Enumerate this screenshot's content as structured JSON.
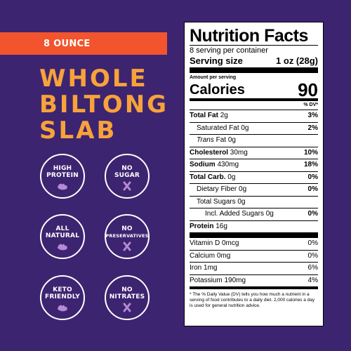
{
  "banner": "8 OUNCE",
  "title": [
    "WHOLE",
    "BILTONG",
    "SLAB"
  ],
  "badges": [
    {
      "line1": "HIGH",
      "line2": "PROTEIN",
      "icon": "muscle-icon"
    },
    {
      "line1": "NO",
      "line2": "SUGAR",
      "icon": "x-icon"
    },
    {
      "line1": "ALL",
      "line2": "NATURAL",
      "icon": "muscle-icon"
    },
    {
      "line1": "NO",
      "line2": "PRESERVATIVES",
      "icon": "x-icon"
    },
    {
      "line1": "KETO",
      "line2": "FRIENDLY",
      "icon": "muscle-icon"
    },
    {
      "line1": "NO",
      "line2": "NITRATES",
      "icon": "x-icon"
    }
  ],
  "colors": {
    "background": "#3d2470",
    "banner": "#f2542d",
    "title": "#f7a23a",
    "icon": "#b58ad6"
  },
  "nutrition": {
    "title": "Nutrition Facts",
    "servings": "8 serving per container",
    "serving_size_label": "Serving size",
    "serving_size_value": "1 oz (28g)",
    "amount_per_serving": "Amount per serving",
    "calories_label": "Calories",
    "calories_value": "90",
    "dv_header": "% DV*",
    "rows": {
      "total_fat": {
        "label": "Total Fat",
        "amount": "2g",
        "dv": "3%"
      },
      "sat_fat": {
        "label": "Saturated Fat",
        "amount": "0g",
        "dv": "2%"
      },
      "trans_fat": {
        "label_italic": "Trans",
        "label": "Fat",
        "amount": "0g"
      },
      "cholesterol": {
        "label": "Cholesterol",
        "amount": "30mg",
        "dv": "10%"
      },
      "sodium": {
        "label": "Sodium",
        "amount": "430mg",
        "dv": "18%"
      },
      "total_carb": {
        "label": "Total Carb.",
        "amount": "0g",
        "dv": "0%"
      },
      "fiber": {
        "label": "Dietary Fiber",
        "amount": "0g",
        "dv": "0%"
      },
      "sugars": {
        "label": "Total Sugars",
        "amount": "0g"
      },
      "added_sugars": {
        "label": "Incl. Added Sugars",
        "amount": "0g",
        "dv": "0%"
      },
      "protein": {
        "label": "Protein",
        "amount": "16g"
      },
      "vitd": {
        "label": "Vitamin D",
        "amount": "0mcg",
        "dv": "0%"
      },
      "calcium": {
        "label": "Calcium",
        "amount": "0mg",
        "dv": "0%"
      },
      "iron": {
        "label": "Iron",
        "amount": "1mg",
        "dv": "6%"
      },
      "potassium": {
        "label": "Potassium",
        "amount": "190mg",
        "dv": "4%"
      }
    },
    "footnote": "* The % Daily Value (DV) tells you how much a nutrient in a serving of food contributes to a daily diet. 2,000 calories a day is used for general nutrition advice."
  }
}
